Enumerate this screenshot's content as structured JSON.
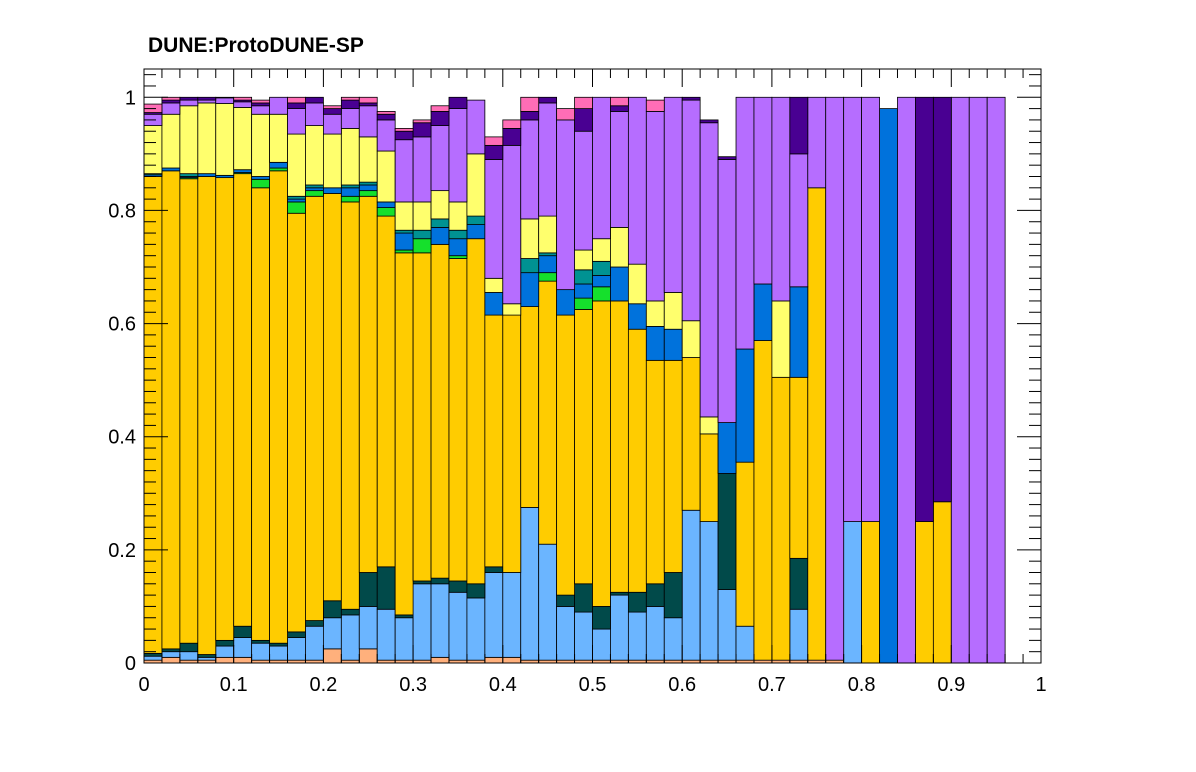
{
  "chart_data": {
    "type": "bar",
    "stacked": true,
    "normalized": true,
    "title": "DUNE:ProtoDUNE-SP",
    "xlabel": "",
    "ylabel": "",
    "xlim": [
      0,
      1
    ],
    "ylim": [
      0,
      1.05
    ],
    "x_ticks": [
      "0",
      "0.1",
      "0.2",
      "0.3",
      "0.4",
      "0.5",
      "0.6",
      "0.7",
      "0.8",
      "0.9",
      "1"
    ],
    "y_ticks": [
      "0",
      "0.2",
      "0.4",
      "0.6",
      "0.8",
      "1"
    ],
    "grid": false,
    "legend": "none",
    "bin_width": 0.02,
    "bin_edges_start": 0,
    "series": [
      {
        "color": "#ffb07c",
        "values": [
          0.005,
          0.01,
          0.005,
          0.005,
          0.01,
          0.01,
          0.005,
          0.005,
          0.005,
          0.005,
          0.025,
          0.005,
          0.025,
          0.005,
          0.005,
          0.005,
          0.01,
          0.005,
          0.005,
          0.01,
          0.01,
          0.005,
          0.005,
          0.005,
          0.005,
          0.005,
          0.005,
          0.005,
          0.005,
          0.005,
          0.005,
          0.005,
          0.005,
          0.005,
          0.005,
          0.005,
          0.005,
          0.005,
          0.005,
          0,
          0,
          0,
          0,
          0,
          0,
          0,
          0,
          0
        ]
      },
      {
        "color": "#6bb5ff",
        "values": [
          0.007,
          0.01,
          0.015,
          0.005,
          0.02,
          0.035,
          0.03,
          0.025,
          0.04,
          0.06,
          0.055,
          0.08,
          0.075,
          0.09,
          0.075,
          0.135,
          0.13,
          0.12,
          0.11,
          0.15,
          0.15,
          0.27,
          0.205,
          0.095,
          0.085,
          0.055,
          0.115,
          0.085,
          0.095,
          0.075,
          0.265,
          0.245,
          0.125,
          0.06,
          0,
          0,
          0.09,
          0,
          0,
          0.25,
          0,
          0,
          0,
          0,
          0,
          0,
          0,
          0
        ]
      },
      {
        "color": "#014a4a",
        "values": [
          0.005,
          0.005,
          0.015,
          0.005,
          0.01,
          0.02,
          0.005,
          0.005,
          0.01,
          0.01,
          0.03,
          0.01,
          0.06,
          0.075,
          0.005,
          0.005,
          0.01,
          0.02,
          0.025,
          0.01,
          0,
          0,
          0,
          0.02,
          0.05,
          0.04,
          0.005,
          0.035,
          0.04,
          0.08,
          0,
          0,
          0.205,
          0,
          0,
          0,
          0.09,
          0,
          0,
          0,
          0,
          0,
          0,
          0,
          0,
          0,
          0,
          0
        ]
      },
      {
        "color": "#ffcc00",
        "values": [
          0.843,
          0.845,
          0.821,
          0.845,
          0.818,
          0.8,
          0.8,
          0.835,
          0.74,
          0.75,
          0.72,
          0.72,
          0.665,
          0.62,
          0.64,
          0.58,
          0.59,
          0.57,
          0.61,
          0.445,
          0.455,
          0.355,
          0.465,
          0.495,
          0.485,
          0.54,
          0.515,
          0.465,
          0.395,
          0.375,
          0.27,
          0.155,
          0,
          0.29,
          0.565,
          0.5,
          0.32,
          0.835,
          0,
          0,
          0.25,
          0,
          0,
          0.25,
          0.285,
          0,
          0,
          0
        ]
      },
      {
        "color": "#15e02c",
        "values": [
          0,
          0,
          0.002,
          0,
          0,
          0.002,
          0.015,
          0.005,
          0.02,
          0.01,
          0,
          0.01,
          0.01,
          0.015,
          0.005,
          0.025,
          0,
          0.005,
          0,
          0,
          0,
          0,
          0.015,
          0,
          0.02,
          0.025,
          0,
          0,
          0,
          0,
          0,
          0,
          0,
          0,
          0,
          0,
          0,
          0,
          0,
          0,
          0,
          0,
          0,
          0,
          0,
          0,
          0,
          0
        ]
      },
      {
        "color": "#0072dc",
        "values": [
          0.003,
          0.005,
          0.002,
          0.005,
          0.004,
          0.005,
          0.005,
          0.01,
          0.005,
          0.005,
          0.01,
          0.015,
          0.01,
          0.01,
          0.03,
          0,
          0.03,
          0.03,
          0.025,
          0.04,
          0,
          0.06,
          0.03,
          0.045,
          0.025,
          0.02,
          0.06,
          0.045,
          0.06,
          0.055,
          0,
          0,
          0.09,
          0.2,
          0.1,
          0,
          0.16,
          0,
          0,
          0,
          0,
          0.98,
          0,
          0,
          0,
          0,
          0,
          0
        ]
      },
      {
        "color": "#009292",
        "values": [
          0.002,
          0,
          0.005,
          0,
          0,
          0,
          0,
          0,
          0.005,
          0.005,
          0,
          0.005,
          0.005,
          0,
          0.005,
          0.015,
          0.015,
          0.015,
          0.015,
          0,
          0,
          0.025,
          0.005,
          0,
          0.025,
          0.025,
          0,
          0,
          0,
          0,
          0,
          0,
          0,
          0,
          0,
          0,
          0,
          0,
          0,
          0,
          0,
          0,
          0,
          0,
          0,
          0,
          0,
          0
        ]
      },
      {
        "color": "#ffff6d",
        "values": [
          0.085,
          0.095,
          0.12,
          0.125,
          0.127,
          0.11,
          0.11,
          0.085,
          0.11,
          0.105,
          0.095,
          0.1,
          0.08,
          0.09,
          0.05,
          0.05,
          0.05,
          0.05,
          0.11,
          0.025,
          0.02,
          0.07,
          0.065,
          0,
          0.035,
          0.04,
          0.07,
          0.07,
          0.045,
          0.065,
          0.065,
          0.03,
          0,
          0,
          0,
          0.135,
          0,
          0,
          0,
          0,
          0,
          0,
          0,
          0,
          0,
          0,
          0,
          0
        ]
      },
      {
        "color": "#b66dff",
        "values": [
          0.02,
          0.02,
          0.01,
          0.005,
          0.01,
          0.01,
          0.015,
          0.03,
          0.045,
          0.04,
          0.035,
          0.035,
          0.055,
          0.055,
          0.11,
          0.115,
          0.115,
          0.165,
          0.095,
          0.21,
          0.28,
          0.175,
          0.2,
          0.3,
          0.21,
          0.25,
          0.205,
          0.295,
          0.335,
          0.35,
          0.39,
          0.52,
          0.465,
          0.445,
          0.335,
          0.365,
          0.235,
          0.16,
          1.0,
          0.75,
          0.75,
          0,
          1.0,
          0,
          0,
          1.0,
          1.0,
          1.0
        ]
      },
      {
        "color": "#490092",
        "values": [
          0.003,
          0.005,
          0.005,
          0.005,
          0.005,
          0.003,
          0.005,
          0.005,
          0.01,
          0.015,
          0.01,
          0.015,
          0.005,
          0.01,
          0.015,
          0.025,
          0.025,
          0.02,
          0,
          0.025,
          0.03,
          0.015,
          0.02,
          0,
          0.04,
          0.02,
          0.01,
          0.005,
          0,
          0.035,
          0.005,
          0.005,
          0.005,
          0.005,
          0,
          0,
          0.14,
          0,
          0,
          0,
          0,
          0,
          0,
          0.75,
          0.715,
          0,
          0,
          0
        ]
      },
      {
        "color": "#ff6db6",
        "values": [
          0.015,
          0.01,
          0.005,
          0.005,
          0.007,
          0.005,
          0.005,
          0,
          0.015,
          0.005,
          0.005,
          0.005,
          0.02,
          0.005,
          0.005,
          0.005,
          0.01,
          0.01,
          0,
          0.015,
          0.015,
          0.03,
          0,
          0.02,
          0.025,
          0,
          0.03,
          0,
          0.02,
          0.015,
          0,
          0,
          0,
          0,
          0,
          0,
          0,
          0.005,
          0,
          0,
          0,
          0,
          0,
          0,
          0,
          0,
          0,
          0
        ]
      }
    ]
  }
}
